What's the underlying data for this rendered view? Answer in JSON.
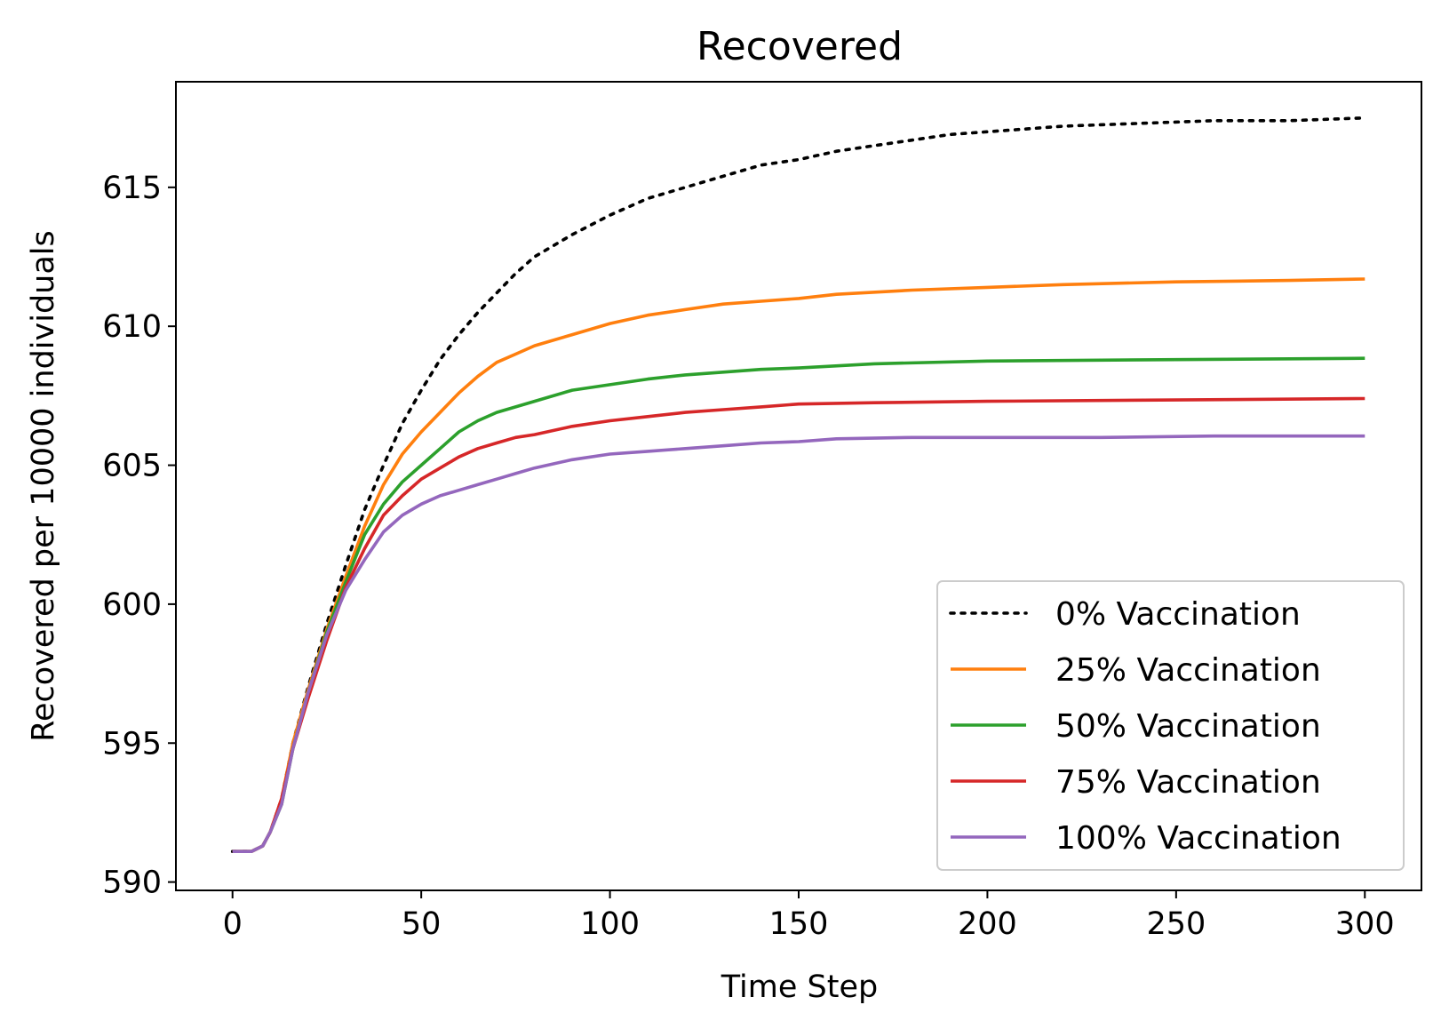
{
  "chart_data": {
    "type": "line",
    "title": "Recovered",
    "xlabel": "Time Step",
    "ylabel": "Recovered per 10000 individuals",
    "xlim": [
      -15,
      315
    ],
    "ylim": [
      589.7,
      618.8
    ],
    "xticks": [
      0,
      50,
      100,
      150,
      200,
      250,
      300
    ],
    "yticks": [
      590,
      595,
      600,
      605,
      610,
      615
    ],
    "grid": false,
    "legend_position": "lower-right",
    "series": [
      {
        "name": "0% Vaccination",
        "color": "#000000",
        "style": "dotted",
        "points": [
          [
            0,
            591.1
          ],
          [
            5,
            591.1
          ],
          [
            8,
            591.3
          ],
          [
            10,
            591.8
          ],
          [
            13,
            593.0
          ],
          [
            16,
            595.0
          ],
          [
            20,
            597.0
          ],
          [
            25,
            599.3
          ],
          [
            30,
            601.4
          ],
          [
            35,
            603.4
          ],
          [
            40,
            605.0
          ],
          [
            45,
            606.5
          ],
          [
            50,
            607.7
          ],
          [
            55,
            608.8
          ],
          [
            60,
            609.7
          ],
          [
            65,
            610.5
          ],
          [
            70,
            611.2
          ],
          [
            75,
            611.9
          ],
          [
            80,
            612.5
          ],
          [
            90,
            613.3
          ],
          [
            100,
            614.0
          ],
          [
            110,
            614.6
          ],
          [
            120,
            615.0
          ],
          [
            130,
            615.4
          ],
          [
            140,
            615.8
          ],
          [
            150,
            616.0
          ],
          [
            160,
            616.3
          ],
          [
            170,
            616.5
          ],
          [
            180,
            616.7
          ],
          [
            190,
            616.9
          ],
          [
            200,
            617.0
          ],
          [
            210,
            617.1
          ],
          [
            220,
            617.2
          ],
          [
            240,
            617.3
          ],
          [
            260,
            617.4
          ],
          [
            280,
            617.4
          ],
          [
            300,
            617.5
          ]
        ]
      },
      {
        "name": "25% Vaccination",
        "color": "#ff7f0e",
        "style": "solid",
        "points": [
          [
            0,
            591.1
          ],
          [
            5,
            591.1
          ],
          [
            8,
            591.3
          ],
          [
            10,
            591.8
          ],
          [
            13,
            593.0
          ],
          [
            16,
            595.0
          ],
          [
            20,
            596.9
          ],
          [
            25,
            599.1
          ],
          [
            30,
            601.0
          ],
          [
            35,
            602.8
          ],
          [
            40,
            604.3
          ],
          [
            45,
            605.4
          ],
          [
            50,
            606.2
          ],
          [
            55,
            606.9
          ],
          [
            60,
            607.6
          ],
          [
            65,
            608.2
          ],
          [
            70,
            608.7
          ],
          [
            75,
            609.0
          ],
          [
            80,
            609.3
          ],
          [
            90,
            609.7
          ],
          [
            100,
            610.1
          ],
          [
            110,
            610.4
          ],
          [
            120,
            610.6
          ],
          [
            130,
            610.8
          ],
          [
            140,
            610.9
          ],
          [
            150,
            611.0
          ],
          [
            160,
            611.15
          ],
          [
            180,
            611.3
          ],
          [
            200,
            611.4
          ],
          [
            220,
            611.5
          ],
          [
            250,
            611.6
          ],
          [
            280,
            611.65
          ],
          [
            300,
            611.7
          ]
        ]
      },
      {
        "name": "50% Vaccination",
        "color": "#2ca02c",
        "style": "solid",
        "points": [
          [
            0,
            591.1
          ],
          [
            5,
            591.1
          ],
          [
            8,
            591.3
          ],
          [
            10,
            591.8
          ],
          [
            13,
            592.8
          ],
          [
            16,
            594.8
          ],
          [
            20,
            596.8
          ],
          [
            25,
            599.0
          ],
          [
            30,
            600.8
          ],
          [
            35,
            602.5
          ],
          [
            40,
            603.6
          ],
          [
            45,
            604.4
          ],
          [
            50,
            605.0
          ],
          [
            55,
            605.6
          ],
          [
            60,
            606.2
          ],
          [
            65,
            606.6
          ],
          [
            70,
            606.9
          ],
          [
            75,
            607.1
          ],
          [
            80,
            607.3
          ],
          [
            90,
            607.7
          ],
          [
            100,
            607.9
          ],
          [
            110,
            608.1
          ],
          [
            120,
            608.25
          ],
          [
            130,
            608.35
          ],
          [
            140,
            608.45
          ],
          [
            150,
            608.5
          ],
          [
            170,
            608.65
          ],
          [
            200,
            608.75
          ],
          [
            250,
            608.8
          ],
          [
            300,
            608.85
          ]
        ]
      },
      {
        "name": "75% Vaccination",
        "color": "#d62728",
        "style": "solid",
        "points": [
          [
            0,
            591.1
          ],
          [
            5,
            591.1
          ],
          [
            8,
            591.3
          ],
          [
            10,
            591.8
          ],
          [
            13,
            593.0
          ],
          [
            16,
            594.8
          ],
          [
            20,
            596.6
          ],
          [
            25,
            598.7
          ],
          [
            30,
            600.6
          ],
          [
            35,
            602.0
          ],
          [
            40,
            603.2
          ],
          [
            45,
            603.9
          ],
          [
            50,
            604.5
          ],
          [
            55,
            604.9
          ],
          [
            60,
            605.3
          ],
          [
            65,
            605.6
          ],
          [
            70,
            605.8
          ],
          [
            75,
            606.0
          ],
          [
            80,
            606.1
          ],
          [
            90,
            606.4
          ],
          [
            100,
            606.6
          ],
          [
            110,
            606.75
          ],
          [
            120,
            606.9
          ],
          [
            130,
            607.0
          ],
          [
            140,
            607.1
          ],
          [
            150,
            607.2
          ],
          [
            170,
            607.25
          ],
          [
            200,
            607.3
          ],
          [
            250,
            607.35
          ],
          [
            300,
            607.4
          ]
        ]
      },
      {
        "name": "100% Vaccination",
        "color": "#9467bd",
        "style": "solid",
        "points": [
          [
            0,
            591.1
          ],
          [
            5,
            591.1
          ],
          [
            8,
            591.3
          ],
          [
            10,
            591.8
          ],
          [
            13,
            592.8
          ],
          [
            16,
            594.8
          ],
          [
            20,
            596.8
          ],
          [
            25,
            598.9
          ],
          [
            30,
            600.5
          ],
          [
            35,
            601.6
          ],
          [
            40,
            602.6
          ],
          [
            45,
            603.2
          ],
          [
            50,
            603.6
          ],
          [
            55,
            603.9
          ],
          [
            60,
            604.1
          ],
          [
            65,
            604.3
          ],
          [
            70,
            604.5
          ],
          [
            75,
            604.7
          ],
          [
            80,
            604.9
          ],
          [
            90,
            605.2
          ],
          [
            100,
            605.4
          ],
          [
            110,
            605.5
          ],
          [
            120,
            605.6
          ],
          [
            130,
            605.7
          ],
          [
            140,
            605.8
          ],
          [
            150,
            605.85
          ],
          [
            160,
            605.95
          ],
          [
            180,
            606.0
          ],
          [
            200,
            606.0
          ],
          [
            230,
            606.0
          ],
          [
            260,
            606.05
          ],
          [
            300,
            606.05
          ]
        ]
      }
    ]
  }
}
